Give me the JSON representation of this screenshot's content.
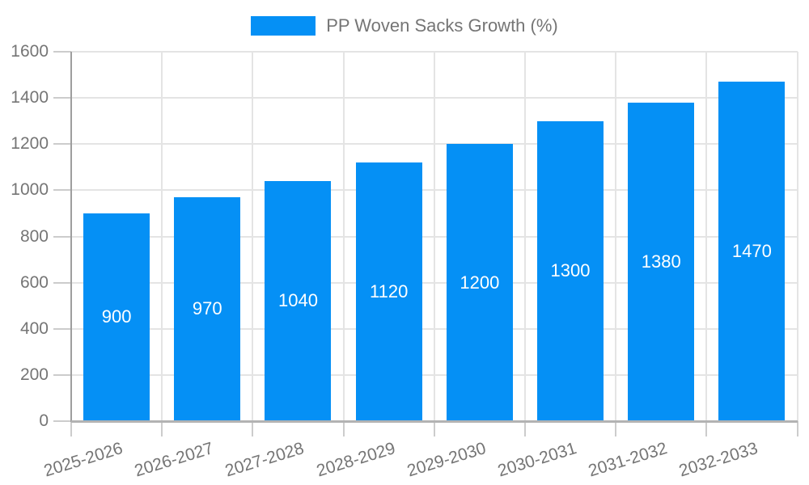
{
  "legend": {
    "label": "PP Woven Sacks Growth (%)"
  },
  "colors": {
    "bar": "#0590f5",
    "grid": "#e4e4e4",
    "axis_y": "#9e9e9e",
    "axis_x": "#b3b3b3",
    "tick": "#cccccc",
    "text": "#757575",
    "bar_label": "#ffffff",
    "background": "#ffffff"
  },
  "chart_data": {
    "type": "bar",
    "title": "PP Woven Sacks Growth (%)",
    "categories": [
      "2025-2026",
      "2026-2027",
      "2027-2028",
      "2028-2029",
      "2029-2030",
      "2030-2031",
      "2031-2032",
      "2032-2033"
    ],
    "values": [
      900,
      970,
      1040,
      1120,
      1200,
      1300,
      1380,
      1470
    ],
    "xlabel": "",
    "ylabel": "",
    "ylim": [
      0,
      1600
    ],
    "yticks": [
      0,
      200,
      400,
      600,
      800,
      1000,
      1200,
      1400,
      1600
    ],
    "grid": "both",
    "legend_position": "top-center",
    "bar_label_position": "inside-center",
    "x_label_rotation_deg": -17
  }
}
